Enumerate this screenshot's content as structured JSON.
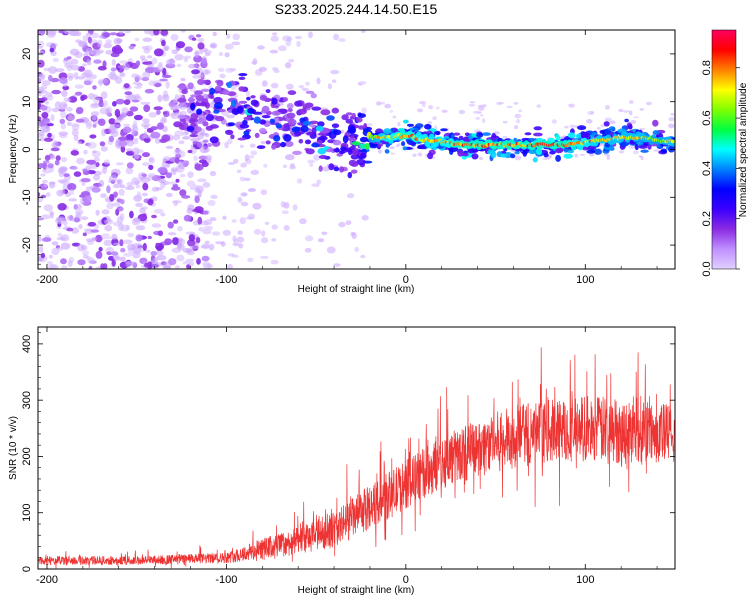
{
  "title": "S233.2025.244.14.50.E15",
  "chart_data": [
    {
      "type": "heatmap",
      "xlabel": "Height of straight line (km)",
      "ylabel": "Frequency (Hz)",
      "xlim": [
        -205,
        150
      ],
      "ylim": [
        -25,
        25
      ],
      "xticks": [
        -200,
        -100,
        0,
        100
      ],
      "yticks": [
        -20,
        -10,
        0,
        10,
        20
      ],
      "colorbar": {
        "label": "Normalized spectral amplitude",
        "range": [
          0,
          0.95
        ],
        "ticks": [
          0.0,
          0.2,
          0.4,
          0.6,
          0.8
        ],
        "colormap": [
          "#e0d0ff",
          "#c090ff",
          "#8a2be2",
          "#3b00ff",
          "#0000ff",
          "#0080ff",
          "#00ffff",
          "#00ff40",
          "#80ff00",
          "#ffff00",
          "#ff8000",
          "#ff0000",
          "#ff0060"
        ]
      },
      "ridge": {
        "x": [
          -120,
          -100,
          -90,
          -80,
          -70,
          -60,
          -50,
          -40,
          -30,
          -20,
          -10,
          0,
          10,
          20,
          30,
          40,
          50,
          60,
          70,
          80,
          90,
          100,
          110,
          120,
          130,
          140,
          150
        ],
        "frequency": [
          7,
          8,
          8,
          7,
          6,
          5,
          3,
          2.5,
          2,
          2.5,
          2.5,
          3,
          2,
          1.5,
          1,
          1,
          1,
          1,
          1,
          1,
          1,
          1.5,
          2,
          2.5,
          2.5,
          2,
          1.5
        ],
        "amplitude": [
          0.3,
          0.4,
          0.55,
          0.45,
          0.35,
          0.4,
          0.45,
          0.5,
          0.5,
          0.75,
          0.85,
          0.9,
          0.85,
          0.85,
          0.9,
          0.9,
          0.9,
          0.9,
          0.9,
          0.9,
          0.9,
          0.85,
          0.8,
          0.8,
          0.8,
          0.75,
          0.8
        ]
      }
    },
    {
      "type": "line",
      "xlabel": "Height of straight line (km)",
      "ylabel": "SNR (10 * v/v)",
      "xlim": [
        -205,
        150
      ],
      "ylim": [
        0,
        430
      ],
      "xticks": [
        -200,
        -100,
        0,
        100
      ],
      "yticks": [
        0,
        100,
        200,
        300,
        400
      ],
      "color": "#ee3333",
      "envelope": {
        "x": [
          -205,
          -150,
          -100,
          -80,
          -60,
          -40,
          -20,
          0,
          20,
          40,
          60,
          80,
          100,
          120,
          140,
          150
        ],
        "mean": [
          15,
          15,
          20,
          35,
          50,
          70,
          110,
          150,
          190,
          215,
          235,
          245,
          250,
          245,
          240,
          240
        ],
        "spread": [
          10,
          10,
          12,
          25,
          30,
          40,
          50,
          55,
          60,
          65,
          70,
          70,
          75,
          75,
          70,
          70
        ]
      }
    }
  ]
}
